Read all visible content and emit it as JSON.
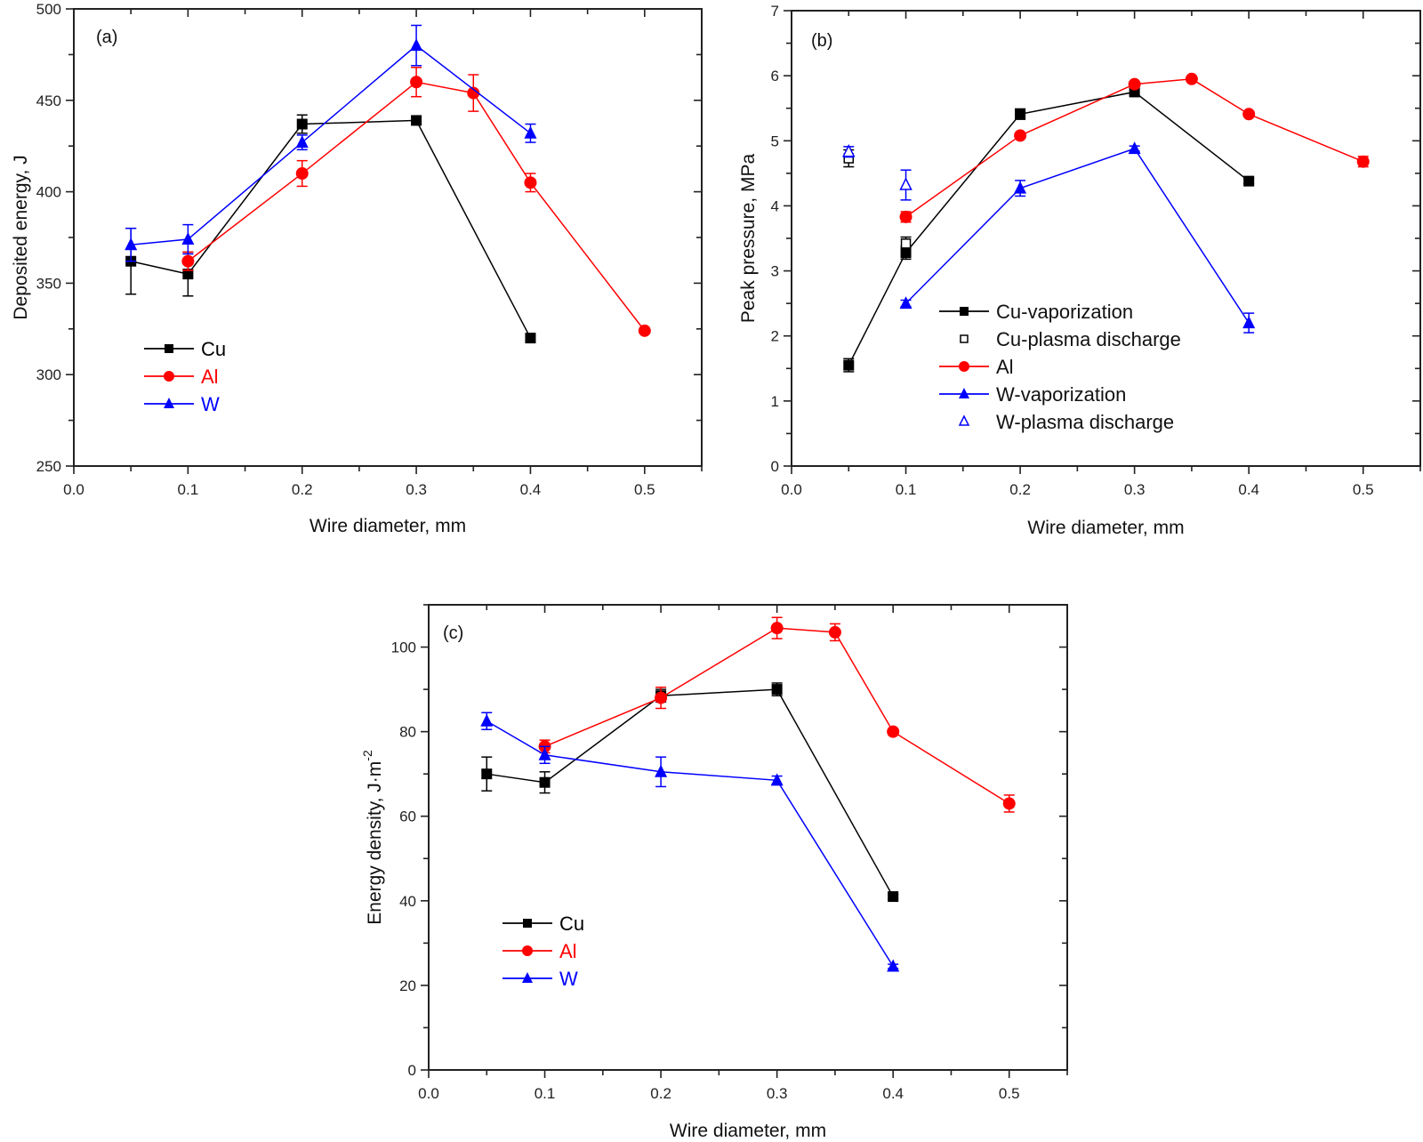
{
  "chart_data": [
    {
      "type": "line",
      "panel_label": "(a)",
      "xlabel": "Wire diameter, mm",
      "ylabel": "Deposited energy, J",
      "xlim": [
        0.0,
        0.55
      ],
      "ylim": [
        250,
        500
      ],
      "xticks": [
        0.0,
        0.1,
        0.2,
        0.3,
        0.4,
        0.5
      ],
      "xtick_labels": [
        "0.0",
        "0.1",
        "0.2",
        "0.3",
        "0.4",
        "0.5"
      ],
      "yticks": [
        250,
        300,
        350,
        400,
        450,
        500
      ],
      "ytick_labels": [
        "250",
        "300",
        "350",
        "400",
        "450",
        "500"
      ],
      "grid": false,
      "legend_position": "lower-left",
      "series": [
        {
          "name": "Cu",
          "color": "#000000",
          "marker": "square",
          "line": true,
          "x": [
            0.05,
            0.1,
            0.2,
            0.3,
            0.4
          ],
          "y": [
            362,
            355,
            437,
            439,
            320
          ],
          "err": [
            18,
            12,
            5,
            2,
            2
          ]
        },
        {
          "name": "Al",
          "color": "#ff0000",
          "marker": "circle",
          "line": true,
          "x": [
            0.1,
            0.2,
            0.3,
            0.35,
            0.4,
            0.5
          ],
          "y": [
            362,
            410,
            460,
            454,
            405,
            324
          ],
          "err": [
            5,
            7,
            8,
            10,
            5,
            1
          ]
        },
        {
          "name": "W",
          "color": "#0000ff",
          "marker": "triangle",
          "line": true,
          "x": [
            0.05,
            0.1,
            0.2,
            0.3,
            0.4
          ],
          "y": [
            371,
            374,
            427,
            480,
            432
          ],
          "err": [
            9,
            8,
            4,
            11,
            5
          ]
        }
      ]
    },
    {
      "type": "line",
      "panel_label": "(b)",
      "xlabel": "Wire diameter, mm",
      "ylabel": "Peak pressure, MPa",
      "xlim": [
        0.0,
        0.55
      ],
      "ylim": [
        0,
        7
      ],
      "xticks": [
        0.0,
        0.1,
        0.2,
        0.3,
        0.4,
        0.5
      ],
      "xtick_labels": [
        "0.0",
        "0.1",
        "0.2",
        "0.3",
        "0.4",
        "0.5"
      ],
      "yticks": [
        0,
        1,
        2,
        3,
        4,
        5,
        6,
        7
      ],
      "ytick_labels": [
        "0",
        "1",
        "2",
        "3",
        "4",
        "5",
        "6",
        "7"
      ],
      "grid": false,
      "legend_position": "lower-center",
      "series": [
        {
          "name": "Cu-vaporization",
          "color": "#000000",
          "marker": "square",
          "line": true,
          "x": [
            0.05,
            0.1,
            0.2,
            0.3,
            0.4
          ],
          "y": [
            1.55,
            3.28,
            5.41,
            5.75,
            4.38
          ],
          "err": [
            0.1,
            0.1,
            0.08,
            0.05,
            0.04
          ]
        },
        {
          "name": "Cu-plasma discharge",
          "color": "#000000",
          "marker": "square-open",
          "line": false,
          "x": [
            0.05,
            0.1
          ],
          "y": [
            4.73,
            3.42
          ],
          "err": [
            0.13,
            0.1
          ]
        },
        {
          "name": "Al",
          "color": "#ff0000",
          "marker": "circle",
          "line": true,
          "x": [
            0.1,
            0.2,
            0.3,
            0.35,
            0.4,
            0.5
          ],
          "y": [
            3.83,
            5.08,
            5.87,
            5.95,
            5.41,
            4.68
          ],
          "err": [
            0.08,
            0.04,
            0.04,
            0.03,
            0.03,
            0.08
          ]
        },
        {
          "name": "W-vaporization",
          "color": "#0000ff",
          "marker": "triangle",
          "line": true,
          "x": [
            0.1,
            0.2,
            0.3,
            0.4
          ],
          "y": [
            2.5,
            4.27,
            4.88,
            2.2
          ],
          "err": [
            0.05,
            0.12,
            0.04,
            0.15
          ]
        },
        {
          "name": "W-plasma discharge",
          "color": "#0000ff",
          "marker": "triangle-open",
          "line": false,
          "x": [
            0.05,
            0.1
          ],
          "y": [
            4.83,
            4.32
          ],
          "err": [
            0.08,
            0.23
          ]
        }
      ]
    },
    {
      "type": "line",
      "panel_label": "(c)",
      "xlabel": "Wire diameter, mm",
      "ylabel": "Energy density, J·m",
      "ylabel_superscript": "-2",
      "xlim": [
        0.0,
        0.55
      ],
      "ylim": [
        0,
        110
      ],
      "xticks": [
        0.0,
        0.1,
        0.2,
        0.3,
        0.4,
        0.5
      ],
      "xtick_labels": [
        "0.0",
        "0.1",
        "0.2",
        "0.3",
        "0.4",
        "0.5"
      ],
      "yticks": [
        0,
        20,
        40,
        60,
        80,
        100
      ],
      "ytick_labels": [
        "0",
        "20",
        "40",
        "60",
        "80",
        "100"
      ],
      "grid": false,
      "legend_position": "lower-left",
      "series": [
        {
          "name": "Cu",
          "color": "#000000",
          "marker": "square",
          "line": true,
          "x": [
            0.05,
            0.1,
            0.2,
            0.3,
            0.4
          ],
          "y": [
            70,
            68,
            88.5,
            90,
            41
          ],
          "err": [
            4,
            2.5,
            1.5,
            1.5,
            0.5
          ]
        },
        {
          "name": "Al",
          "color": "#ff0000",
          "marker": "circle",
          "line": true,
          "x": [
            0.1,
            0.2,
            0.3,
            0.35,
            0.4,
            0.5
          ],
          "y": [
            76.5,
            88,
            104.5,
            103.5,
            80,
            63
          ],
          "err": [
            1.5,
            2.5,
            2.5,
            2,
            0.5,
            2
          ]
        },
        {
          "name": "W",
          "color": "#0000ff",
          "marker": "triangle",
          "line": true,
          "x": [
            0.05,
            0.1,
            0.2,
            0.3,
            0.4
          ],
          "y": [
            82.5,
            74.5,
            70.5,
            68.5,
            24.5
          ],
          "err": [
            2,
            2,
            3.5,
            1,
            0.5
          ]
        }
      ]
    }
  ]
}
